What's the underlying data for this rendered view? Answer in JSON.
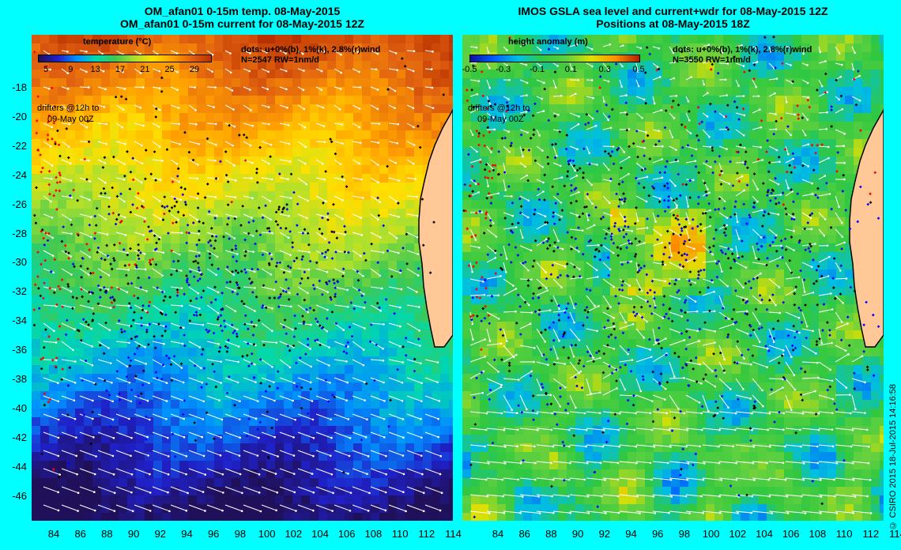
{
  "left_panel": {
    "title_line1": "OM_afan01 0-15m temp. 08-May-2015",
    "title_line2": "OM_afan01 0-15m current for 08-May-2015 12Z",
    "colorbar_title": "temperature (°C)",
    "colorbar_ticks": [
      "5",
      "9",
      "13",
      "17",
      "21",
      "25",
      "29"
    ],
    "dots_note": "dots: u+0%(b), 1%(k), 2.8%(r)wind",
    "count_note": "N=2547 RW=1nm/d",
    "drifters_line1": "drifters @12h to",
    "drifters_line2": "09-May 00Z"
  },
  "right_panel": {
    "title_line1": "IMOS GSLA sea level and current+wdr for 08-May-2015 12Z",
    "title_line2": "Positions at 08-May-2015 18Z",
    "colorbar_title": "height anomaly (m)",
    "colorbar_ticks": [
      "-0.5",
      "-0.3",
      "-0.1",
      "0.1",
      "0.3",
      "0.5"
    ],
    "dots_note": "dots: u+0%(b), 1%(k), 2.8%(r)wind",
    "count_note": "N=3550 RW=1nm/d",
    "drifters_line1": "drifters @12h to",
    "drifters_line2": "09-May 00Z"
  },
  "axes": {
    "lat_ticks": [
      "-18",
      "-20",
      "-22",
      "-24",
      "-26",
      "-28",
      "-30",
      "-32",
      "-34",
      "-36",
      "-38",
      "-40",
      "-42",
      "-44",
      "-46"
    ],
    "lon_ticks": [
      "84",
      "86",
      "88",
      "90",
      "92",
      "94",
      "96",
      "98",
      "100",
      "102",
      "104",
      "106",
      "108",
      "110",
      "112",
      "114"
    ]
  },
  "credit": "© CSIRO 2015  18-Jul-2015 14:16:58",
  "colors": {
    "background": "#00ffff",
    "land": "#ffc896",
    "coast": "#000000",
    "arrow": "#ffffff",
    "dot_blue": "#0000ff",
    "dot_black": "#000000",
    "dot_red": "#ff0000",
    "temperature_scale": [
      "#20105a",
      "#2020c8",
      "#0090ff",
      "#00d8b0",
      "#40c850",
      "#a8e030",
      "#ffe000",
      "#ffa000",
      "#e06010",
      "#b83000"
    ],
    "height_scale": [
      "#1010a0",
      "#0060ff",
      "#00c0e0",
      "#30c840",
      "#60d040",
      "#e0e000",
      "#ff9000",
      "#b02000"
    ]
  }
}
